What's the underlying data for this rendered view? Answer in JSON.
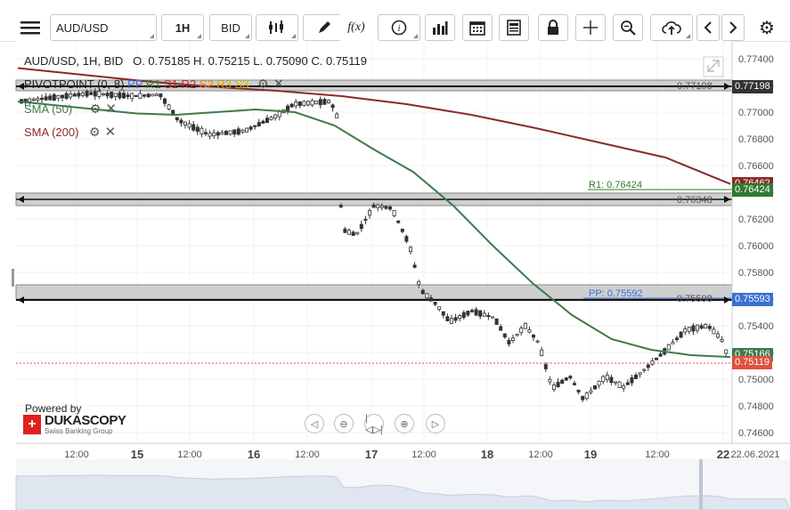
{
  "toolbar": {
    "symbol": "AUD/USD",
    "timeframe": "1H",
    "price_side": "BID",
    "fx_label": "f(x)"
  },
  "ohlc": {
    "pair": "AUD/USD, 1H, BID",
    "open": "O. 0.75185",
    "high": "H. 0.75215",
    "low": "L. 0.75090",
    "close": "C. 0.75119"
  },
  "indicators": {
    "pivot_name": "PIVOTPOINT (0, 8)",
    "pivot_levels": [
      {
        "label": "PP",
        "color": "#3b6fd6"
      },
      {
        "label": "R1",
        "color": "#3a8a3a"
      },
      {
        "label": "S1",
        "color": "#b5322e"
      },
      {
        "label": "R2",
        "color": "#b5322e"
      },
      {
        "label": "S2",
        "color": "#e08a1a"
      },
      {
        "label": "R3",
        "color": "#d9a400"
      },
      {
        "label": "S3",
        "color": "#d4c000"
      }
    ],
    "sma50": "SMA (50)",
    "sma200": "SMA (200)",
    "sma50_color": "#3f7a4a",
    "sma200_color": "#8b2a2a"
  },
  "y_axis": {
    "ticks": [
      "0.77400",
      "0.77200",
      "0.77000",
      "0.76800",
      "0.76600",
      "0.76400",
      "0.76200",
      "0.76000",
      "0.75800",
      "0.75600",
      "0.75400",
      "0.75200",
      "0.75000",
      "0.74800",
      "0.74600"
    ],
    "tags": {
      "upper_pivot": "0.77198",
      "sma200": "0.76462",
      "r1": "0.76424",
      "mid_pivot": "0.76348",
      "pp": "0.75593",
      "pp_line": "0.75598",
      "sma50": "0.75166",
      "close": "0.75119"
    },
    "pp_inline": "PP: 0.75592",
    "r1_inline": "R1: 0.76424"
  },
  "x_axis": {
    "labels": [
      "12:00",
      "15",
      "12:00",
      "16",
      "12:00",
      "17",
      "12:00",
      "18",
      "12:00",
      "19",
      "12:00",
      "22",
      "22.06.2021"
    ]
  },
  "branding": {
    "powered_by": "Powered by",
    "name": "DUKASCOPY",
    "tagline": "Swiss Banking Group"
  },
  "chart_data": {
    "type": "line",
    "title": "AUD/USD, 1H, BID",
    "ylim": [
      0.7455,
      0.7745
    ],
    "series": [
      {
        "name": "SMA (50)",
        "values": [
          0.7708,
          0.7705,
          0.7702,
          0.7699,
          0.7698,
          0.77,
          0.7702,
          0.77,
          0.769,
          0.7672,
          0.7655,
          0.763,
          0.76,
          0.7572,
          0.7548,
          0.753,
          0.7522,
          0.7518,
          0.75166
        ]
      },
      {
        "name": "SMA (200)",
        "values": [
          0.7733,
          0.7728,
          0.7723,
          0.7719,
          0.7716,
          0.7712,
          0.7706,
          0.7698,
          0.7688,
          0.7677,
          0.7666,
          0.76462
        ]
      }
    ],
    "pivots": {
      "upper": 0.77198,
      "mid": 0.76348,
      "pp": 0.75598,
      "r1": 0.76424
    },
    "last_close": 0.75119
  }
}
